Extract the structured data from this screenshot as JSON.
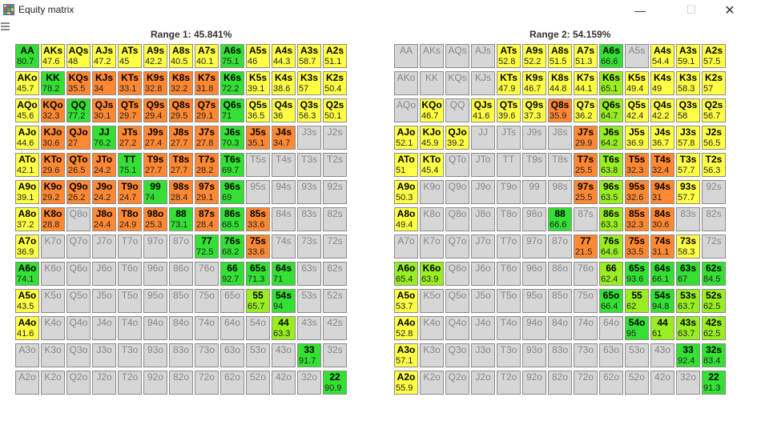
{
  "window": {
    "title": "Equity matrix"
  },
  "range1": {
    "title": "Range 1: 45.841%",
    "eq": [
      [
        "80.7",
        "47.6",
        "48",
        "47.2",
        "45",
        "42.2",
        "40.5",
        "40.1",
        "75.1",
        "46",
        "44.3",
        "58.7",
        "51.1"
      ],
      [
        "45.7",
        "78.2",
        "35.5",
        "34",
        "33.1",
        "32.8",
        "32.2",
        "31.8",
        "72.2",
        "39.1",
        "38.6",
        "57",
        "50.4"
      ],
      [
        "45.6",
        "32.3",
        "77.2",
        "30.1",
        "29.7",
        "29.4",
        "29.5",
        "29.1",
        "71",
        "36.5",
        "36",
        "56.3",
        "50.1"
      ],
      [
        "44.6",
        "30.6",
        "27",
        "76.2",
        "27.2",
        "27.4",
        "27.7",
        "27.8",
        "70.3",
        "35.1",
        "34.7",
        "",
        ""
      ],
      [
        "42.1",
        "29.6",
        "26.5",
        "24.2",
        "75.1",
        "27.7",
        "27.7",
        "28.2",
        "69.7",
        "",
        "",
        "",
        ""
      ],
      [
        "39.1",
        "29.2",
        "26.2",
        "24.2",
        "24.7",
        "74",
        "28.4",
        "29.1",
        "69",
        "",
        "",
        "",
        ""
      ],
      [
        "37.2",
        "28.8",
        "",
        "24.4",
        "24.9",
        "25.3",
        "73.1",
        "28.4",
        "68.5",
        "33.6",
        "",
        "",
        ""
      ],
      [
        "36.9",
        "",
        "",
        "",
        "",
        "",
        "",
        "72.5",
        "68.2",
        "33.6",
        "",
        "",
        ""
      ],
      [
        "74.1",
        "",
        "",
        "",
        "",
        "",
        "",
        "",
        "92.7",
        "71.3",
        "71",
        "",
        ""
      ],
      [
        "43.5",
        "",
        "",
        "",
        "",
        "",
        "",
        "",
        "",
        "65.7",
        "94",
        "",
        ""
      ],
      [
        "41.6",
        "",
        "",
        "",
        "",
        "",
        "",
        "",
        "",
        "",
        "63.3",
        "",
        ""
      ],
      [
        "",
        "",
        "",
        "",
        "",
        "",
        "",
        "",
        "",
        "",
        "",
        "91.7",
        ""
      ],
      [
        "",
        "",
        "",
        "",
        "",
        "",
        "",
        "",
        "",
        "",
        "",
        "",
        "90.9"
      ]
    ]
  },
  "range2": {
    "title": "Range 2: 54.159%",
    "eq": [
      [
        "",
        "",
        "",
        "",
        "52.8",
        "52.2",
        "51.5",
        "51.3",
        "66.6",
        "",
        "54.4",
        "59.1",
        "57.5"
      ],
      [
        "",
        "",
        "",
        "",
        "47.9",
        "46.7",
        "44.8",
        "44.1",
        "65.1",
        "49.4",
        "49",
        "58.3",
        "57"
      ],
      [
        "",
        "46.7",
        "",
        "41.6",
        "39.6",
        "37.3",
        "35.9",
        "36.2",
        "64.7",
        "42.4",
        "42.2",
        "58",
        "56.7"
      ],
      [
        "52.1",
        "45.9",
        "39.2",
        "",
        "",
        "",
        "",
        "29.9",
        "64.2",
        "36.9",
        "36.7",
        "57.8",
        "56.5"
      ],
      [
        "51",
        "45.4",
        "",
        "",
        "",
        "",
        "",
        "25.5",
        "63.8",
        "32.3",
        "32.4",
        "57.7",
        "56.3"
      ],
      [
        "50.3",
        "",
        "",
        "",
        "",
        "",
        "",
        "25.5",
        "63.5",
        "32.6",
        "31",
        "57.7",
        ""
      ],
      [
        "49.4",
        "",
        "",
        "",
        "",
        "",
        "66.6",
        "",
        "63.3",
        "32.3",
        "30.6",
        "",
        ""
      ],
      [
        "",
        "",
        "",
        "",
        "",
        "",
        "",
        "21.5",
        "64.6",
        "33.5",
        "31.1",
        "58.3",
        ""
      ],
      [
        "65.4",
        "63.9",
        "",
        "",
        "",
        "",
        "",
        "",
        "62.4",
        "93.6",
        "66.1",
        "67",
        "84.5"
      ],
      [
        "53.7",
        "",
        "",
        "",
        "",
        "",
        "",
        "",
        "66.4",
        "62",
        "94.8",
        "63.7",
        "62.5"
      ],
      [
        "52.8",
        "",
        "",
        "",
        "",
        "",
        "",
        "",
        "",
        "95",
        "61",
        "63.7",
        "62.5"
      ],
      [
        "57.1",
        "",
        "",
        "",
        "",
        "",
        "",
        "",
        "",
        "",
        "",
        "92.4",
        "83.4"
      ],
      [
        "55.9",
        "",
        "",
        "",
        "",
        "",
        "",
        "",
        "",
        "",
        "",
        "",
        "91.3"
      ]
    ]
  },
  "colors": {
    "green": "#33e033",
    "lime": "#99ee22",
    "yellow": "#ffff44",
    "orange": "#ff8833",
    "gray": "#d6d6d6"
  }
}
